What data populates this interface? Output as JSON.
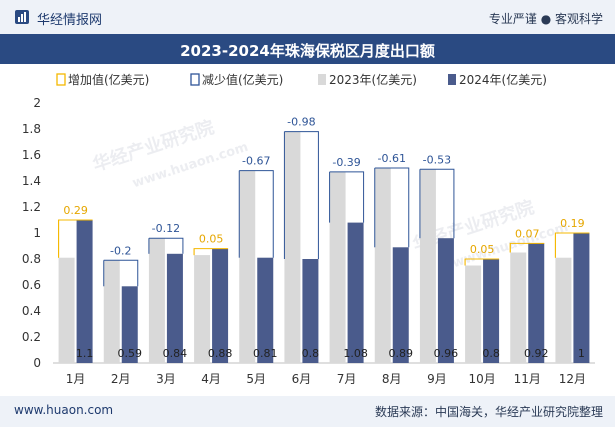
{
  "header": {
    "brand": "华经情报网",
    "slogan": "专业严谨 ● 客观科学"
  },
  "footer": {
    "website": "www.huaon.com",
    "source": "数据来源：中国海关，华经产业研究院整理"
  },
  "watermark": {
    "text": "华经产业研究院",
    "url": "www.huaon.com"
  },
  "colors": {
    "header_bg": "#eef2f8",
    "title_band": "#2a4a82",
    "bar_2023": "#d9d9d9",
    "bar_2024": "#4a5b8c",
    "increase": "#f5b800",
    "decrease": "#2f5597"
  },
  "chart_data": {
    "type": "bar",
    "title": "2023-2024年珠海保税区月度出口额",
    "categories": [
      "1月",
      "2月",
      "3月",
      "4月",
      "5月",
      "6月",
      "7月",
      "8月",
      "9月",
      "10月",
      "11月",
      "12月"
    ],
    "series": [
      {
        "name": "2023年(亿美元)",
        "values": [
          0.81,
          0.79,
          0.96,
          0.83,
          1.48,
          1.78,
          1.47,
          1.5,
          1.49,
          0.75,
          0.85,
          0.81
        ]
      },
      {
        "name": "2024年(亿美元)",
        "values": [
          1.1,
          0.59,
          0.84,
          0.88,
          0.81,
          0.8,
          1.08,
          0.89,
          0.96,
          0.8,
          0.92,
          1
        ]
      }
    ],
    "change": [
      0.29,
      -0.2,
      -0.12,
      0.05,
      -0.67,
      -0.98,
      -0.39,
      -0.61,
      -0.53,
      0.05,
      0.07,
      0.19
    ],
    "change_labels": [
      "0.29",
      "-0.2",
      "-0.12",
      "0.05",
      "-0.67",
      "-0.98",
      "-0.39",
      "-0.61",
      "-0.53",
      "0.05",
      "0.07",
      "0.19"
    ],
    "value_labels_2024": [
      "1.1",
      "0.59",
      "0.84",
      "0.88",
      "0.81",
      "0.8",
      "1.08",
      "0.89",
      "0.96",
      "0.8",
      "0.92",
      "1"
    ],
    "legend": [
      "增加值(亿美元)",
      "减少值(亿美元)",
      "2023年(亿美元)",
      "2024年(亿美元)"
    ],
    "yticks": [
      "0",
      "0.2",
      "0.4",
      "0.6",
      "0.8",
      "1",
      "1.2",
      "1.4",
      "1.6",
      "1.8",
      "2"
    ],
    "ylim": [
      0,
      2
    ],
    "legend_position": "top",
    "grid": false
  }
}
